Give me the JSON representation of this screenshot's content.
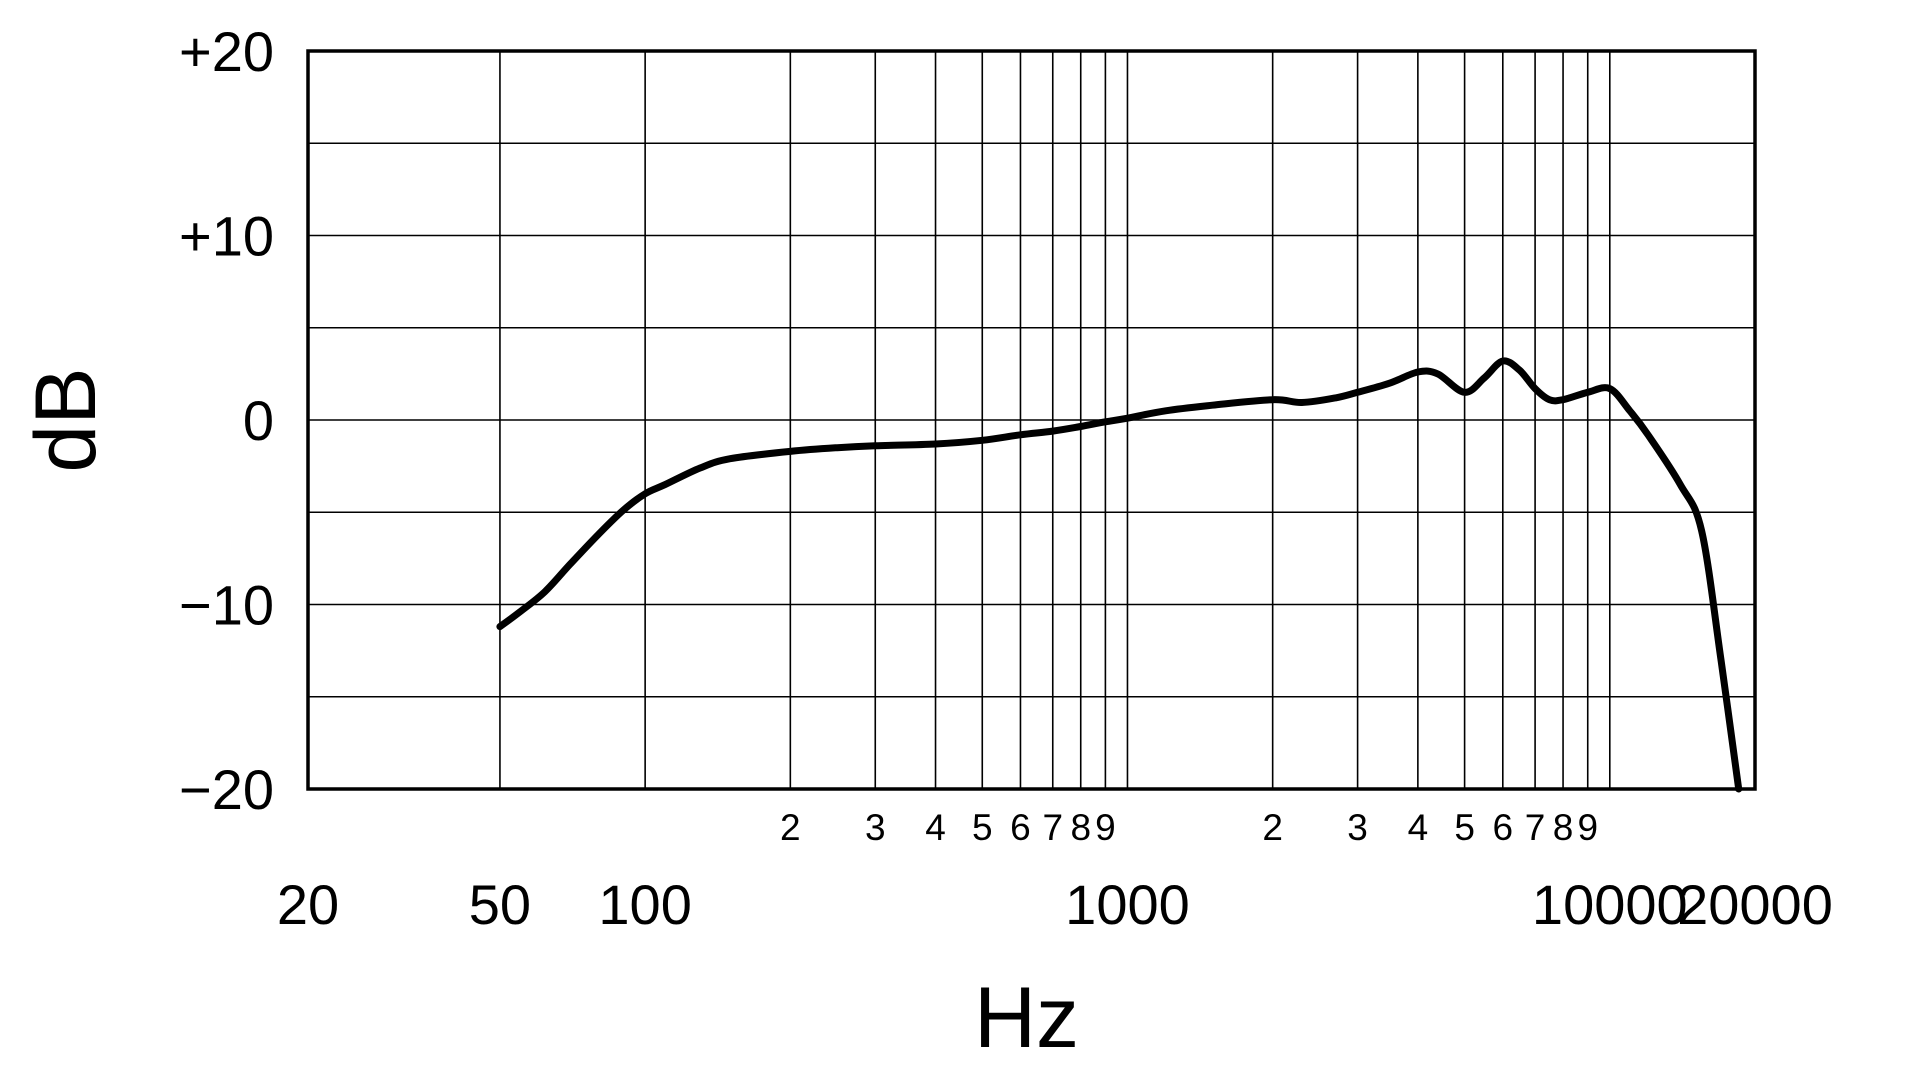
{
  "chart_data": {
    "type": "line",
    "title": "",
    "xlabel": "Hz",
    "ylabel": "dB",
    "xscale": "log",
    "xlim": [
      20,
      20000
    ],
    "ylim": [
      -20,
      20
    ],
    "grid": true,
    "x_major_ticks": [
      {
        "value": 20,
        "label": "20"
      },
      {
        "value": 50,
        "label": "50"
      },
      {
        "value": 100,
        "label": "100"
      },
      {
        "value": 1000,
        "label": "1000"
      },
      {
        "value": 10000,
        "label": "10000"
      },
      {
        "value": 20000,
        "label": "20000"
      }
    ],
    "x_minor_ticks": [
      {
        "value": 200,
        "label": "2"
      },
      {
        "value": 300,
        "label": "3"
      },
      {
        "value": 400,
        "label": "4"
      },
      {
        "value": 500,
        "label": "5"
      },
      {
        "value": 600,
        "label": "6"
      },
      {
        "value": 700,
        "label": "7"
      },
      {
        "value": 800,
        "label": "8"
      },
      {
        "value": 900,
        "label": "9"
      },
      {
        "value": 2000,
        "label": "2"
      },
      {
        "value": 3000,
        "label": "3"
      },
      {
        "value": 4000,
        "label": "4"
      },
      {
        "value": 5000,
        "label": "5"
      },
      {
        "value": 6000,
        "label": "6"
      },
      {
        "value": 7000,
        "label": "7"
      },
      {
        "value": 8000,
        "label": "8"
      },
      {
        "value": 9000,
        "label": "9"
      }
    ],
    "y_ticks": [
      {
        "value": 20,
        "label": "+20"
      },
      {
        "value": 10,
        "label": "+10"
      },
      {
        "value": 0,
        "label": "0"
      },
      {
        "value": -10,
        "label": "−10"
      },
      {
        "value": -20,
        "label": "−20"
      }
    ],
    "y_gridlines": [
      20,
      15,
      10,
      5,
      0,
      -5,
      -10,
      -15,
      -20
    ],
    "series": [
      {
        "x": [
          50,
          55,
          62,
          70,
          80,
          90,
          100,
          110,
          130,
          150,
          200,
          250,
          300,
          400,
          500,
          600,
          700,
          800,
          900,
          1000,
          1200,
          1500,
          2000,
          2300,
          2700,
          3000,
          3500,
          4000,
          4400,
          5000,
          5500,
          6000,
          6500,
          7000,
          7500,
          8000,
          9000,
          10000,
          11000,
          12000,
          14000,
          15500,
          17000,
          18500
        ],
        "y": [
          -11.2,
          -10.4,
          -9.3,
          -7.8,
          -6.2,
          -4.9,
          -4.0,
          -3.5,
          -2.6,
          -2.1,
          -1.7,
          -1.5,
          -1.4,
          -1.3,
          -1.1,
          -0.8,
          -0.6,
          -0.35,
          -0.1,
          0.1,
          0.5,
          0.8,
          1.1,
          0.95,
          1.2,
          1.5,
          2.0,
          2.6,
          2.5,
          1.5,
          2.3,
          3.2,
          2.7,
          1.7,
          1.1,
          1.1,
          1.5,
          1.7,
          0.5,
          -0.8,
          -3.5,
          -6.0,
          -13.0,
          -20.0
        ]
      }
    ]
  }
}
